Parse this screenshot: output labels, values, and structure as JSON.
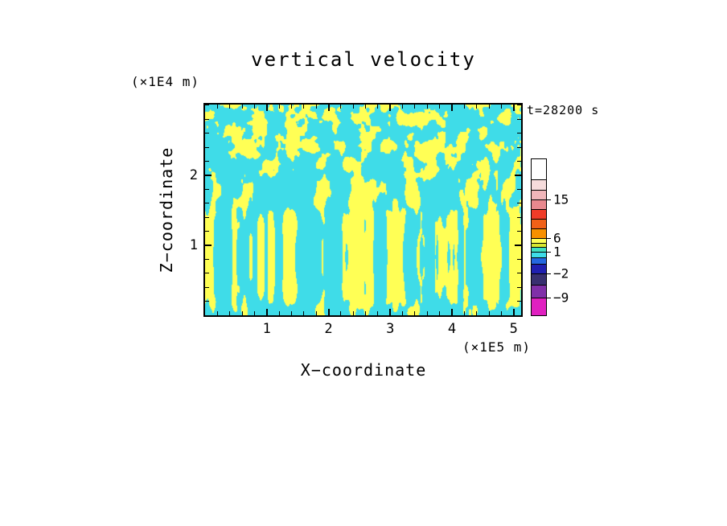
{
  "figure": {
    "title": "vertical velocity",
    "time_label": "t=28200 s",
    "x_axis_title": "X−coordinate",
    "x_units": "(×1E5 m)",
    "y_axis_title": "Z−coordinate",
    "y_units": "(×1E4 m)"
  },
  "chart_data": {
    "type": "heatmap",
    "title": "vertical velocity",
    "xlabel": "X−coordinate",
    "ylabel": "Z−coordinate",
    "x_units": "(×1E5 m)",
    "y_units": "(×1E4 m)",
    "time_annotation": "t=28200 s",
    "x_range": [
      0,
      5.12
    ],
    "y_range": [
      0,
      3.01
    ],
    "x_ticks": [
      "1",
      "2",
      "3",
      "4",
      "5"
    ],
    "x_tick_values": [
      1,
      2,
      3,
      4,
      5
    ],
    "y_ticks": [
      "1",
      "2"
    ],
    "y_tick_values": [
      1,
      2
    ],
    "minor_tick_step": 0.2,
    "grid": "off",
    "legend_position": "right-colorbar",
    "field_description": "Turbulent convective vertical-velocity field: almost the whole domain alternates between two plotted levels — cyan (weak/negative velocity, approx −2…1) and yellow (positive updrafts, approx 1…6) — forming fine vertically-elongated streaks near the bottom and larger interlocking blobs near the top.",
    "field_colors": {
      "negative": "#3fdce8",
      "positive": "#ffff55"
    },
    "pattern": {
      "seed": 1337,
      "octaves": 3,
      "base_fx": 0.075,
      "base_fy_top": 0.065,
      "base_fy_bottom": 0.02,
      "threshold": 0.53
    },
    "colorbar": {
      "labels": [
        {
          "value": "15",
          "boundary_segment": 3
        },
        {
          "value": "6",
          "boundary_segment": 7
        },
        {
          "value": "1",
          "boundary_segment": 10
        },
        {
          "value": "−2",
          "boundary_segment": 13
        },
        {
          "value": "−9",
          "boundary_segment": 15
        }
      ],
      "segments": [
        {
          "color": "#ffffff",
          "h": 25
        },
        {
          "color": "#f6dcdc",
          "h": 12
        },
        {
          "color": "#f0b6ba",
          "h": 11
        },
        {
          "color": "#e8888e",
          "h": 11
        },
        {
          "color": "#f03c28",
          "h": 11
        },
        {
          "color": "#f06018",
          "h": 11
        },
        {
          "color": "#f89000",
          "h": 11
        },
        {
          "color": "#ffff55",
          "h": 5
        },
        {
          "color": "#d8e830",
          "h": 4
        },
        {
          "color": "#40e0c0",
          "h": 5
        },
        {
          "color": "#3fdce8",
          "h": 6
        },
        {
          "color": "#2468e0",
          "h": 7
        },
        {
          "color": "#2020b0",
          "h": 11
        },
        {
          "color": "#383070",
          "h": 13
        },
        {
          "color": "#8030a8",
          "h": 15
        },
        {
          "color": "#e020c0",
          "h": 21
        }
      ]
    }
  }
}
